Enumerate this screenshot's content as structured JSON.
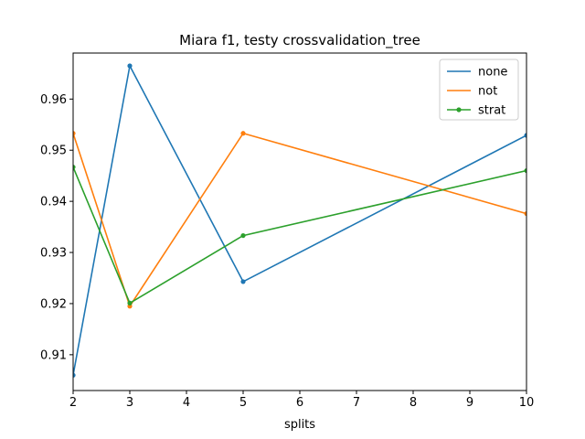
{
  "chart_data": {
    "type": "line",
    "title": "Miara f1, testy crossvalidation_tree",
    "xlabel": "splits",
    "ylabel": "",
    "xlim": [
      2,
      10
    ],
    "ylim": [
      0.903,
      0.969
    ],
    "x_ticks": [
      2,
      3,
      4,
      5,
      6,
      7,
      8,
      9,
      10
    ],
    "y_ticks": [
      0.91,
      0.92,
      0.93,
      0.94,
      0.95,
      0.96
    ],
    "x": [
      2,
      3,
      5,
      10
    ],
    "grid": false,
    "legend_position": "top-right",
    "series": [
      {
        "name": "none",
        "color": "#1f77b4",
        "values": [
          0.906,
          0.9665,
          0.9243,
          0.9529
        ]
      },
      {
        "name": "not",
        "color": "#ff7f0e",
        "values": [
          0.9533,
          0.9195,
          0.9533,
          0.9376
        ]
      },
      {
        "name": "strat",
        "color": "#2ca02c",
        "values": [
          0.9467,
          0.9201,
          0.9333,
          0.946
        ]
      }
    ]
  }
}
